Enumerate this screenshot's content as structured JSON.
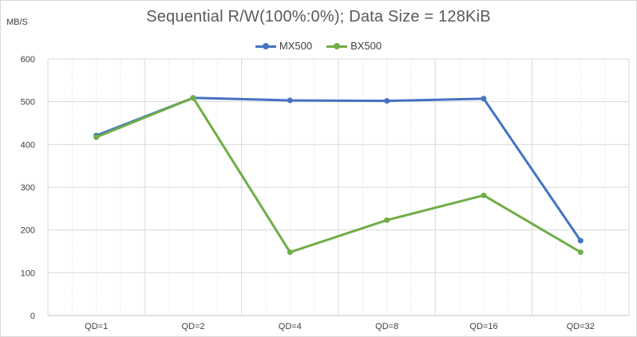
{
  "chart_data": {
    "type": "line",
    "title": "Sequential R/W(100%:0%); Data Size = 128KiB",
    "ylabel": "MB/S",
    "xlabel": "",
    "categories": [
      "QD=1",
      "QD=2",
      "QD=4",
      "QD=8",
      "QD=16",
      "QD=32"
    ],
    "series": [
      {
        "name": "MX500",
        "values": [
          421,
          509,
          503,
          502,
          507,
          175
        ],
        "color": "#4472c4"
      },
      {
        "name": "BX500",
        "values": [
          417,
          509,
          148,
          223,
          281,
          148
        ],
        "color": "#70ad47"
      }
    ],
    "ylim": [
      0,
      600
    ],
    "yticks": [
      "0",
      "100",
      "200",
      "300",
      "400",
      "500",
      "600"
    ],
    "grid": true,
    "legend": "top"
  }
}
